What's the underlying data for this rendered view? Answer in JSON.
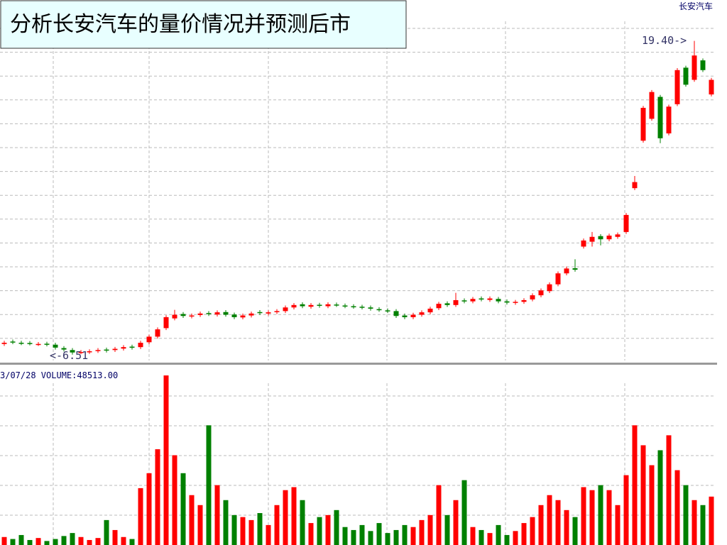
{
  "title": "分析长安汽车的量价情况并预测后市",
  "chart_data": {
    "type": "candlestick",
    "name": "长安汽车",
    "high_label": "19.40->",
    "low_label": "<-6.51",
    "volume_label": "3/07/28 VOLUME:48513.00",
    "up_color": "#ff0000",
    "down_color": "#008000",
    "grid": true,
    "ylim": [
      6.3,
      21.08
    ],
    "volume_ylim": [
      0,
      180000
    ],
    "open": [
      6.95,
      7.05,
      7.0,
      6.99,
      6.95,
      6.96,
      6.92,
      6.78,
      6.7,
      6.58,
      6.62,
      6.66,
      6.72,
      6.7,
      6.76,
      6.84,
      6.82,
      7.02,
      7.25,
      7.6,
      8.0,
      8.18,
      8.08,
      8.14,
      8.22,
      8.16,
      8.26,
      8.16,
      8.04,
      8.12,
      8.26,
      8.2,
      8.26,
      8.3,
      8.45,
      8.58,
      8.48,
      8.56,
      8.5,
      8.57,
      8.53,
      8.5,
      8.48,
      8.45,
      8.38,
      8.33,
      8.3,
      8.12,
      8.05,
      8.15,
      8.25,
      8.42,
      8.62,
      8.55,
      8.74,
      8.7,
      8.82,
      8.76,
      8.8,
      8.7,
      8.64,
      8.68,
      8.78,
      8.95,
      9.12,
      9.4,
      9.85,
      10.06,
      10.95,
      11.15,
      11.38,
      11.25,
      11.35,
      11.55,
      13.35,
      15.3,
      16.2,
      17.1,
      15.6,
      16.8,
      18.3,
      17.8,
      18.6,
      17.2
    ],
    "close": [
      7.0,
      7.02,
      6.98,
      6.97,
      6.95,
      6.93,
      6.8,
      6.72,
      6.6,
      6.62,
      6.65,
      6.7,
      6.68,
      6.75,
      6.82,
      6.8,
      7.0,
      7.25,
      7.55,
      8.05,
      8.15,
      8.1,
      8.12,
      8.2,
      8.18,
      8.25,
      8.15,
      8.05,
      8.12,
      8.2,
      8.22,
      8.25,
      8.3,
      8.45,
      8.55,
      8.5,
      8.55,
      8.52,
      8.58,
      8.55,
      8.5,
      8.48,
      8.45,
      8.4,
      8.35,
      8.3,
      8.1,
      8.05,
      8.15,
      8.25,
      8.4,
      8.6,
      8.55,
      8.75,
      8.7,
      8.8,
      8.78,
      8.82,
      8.7,
      8.65,
      8.68,
      8.75,
      8.95,
      9.15,
      9.4,
      9.85,
      10.05,
      10.0,
      11.2,
      11.35,
      11.25,
      11.4,
      11.45,
      12.25,
      13.6,
      16.65,
      17.3,
      15.4,
      16.7,
      18.2,
      17.6,
      18.8,
      18.2,
      17.8
    ],
    "high": [
      7.08,
      7.13,
      7.08,
      7.07,
      7.03,
      7.04,
      7.0,
      6.86,
      6.78,
      6.7,
      6.73,
      6.78,
      6.8,
      6.83,
      6.9,
      6.92,
      7.08,
      7.33,
      7.63,
      8.13,
      8.35,
      8.26,
      8.2,
      8.28,
      8.3,
      8.33,
      8.34,
      8.24,
      8.2,
      8.28,
      8.34,
      8.33,
      8.38,
      8.53,
      8.63,
      8.66,
      8.63,
      8.64,
      8.66,
      8.65,
      8.61,
      8.58,
      8.56,
      8.53,
      8.46,
      8.41,
      8.38,
      8.2,
      8.23,
      8.33,
      8.48,
      8.68,
      8.7,
      9.05,
      8.82,
      8.88,
      8.9,
      8.9,
      8.88,
      8.78,
      8.76,
      8.83,
      9.03,
      9.23,
      9.48,
      9.93,
      10.13,
      10.43,
      11.28,
      11.55,
      11.46,
      11.48,
      11.53,
      12.33,
      13.85,
      16.73,
      17.38,
      17.18,
      16.78,
      18.28,
      18.38,
      19.4,
      18.68,
      17.88
    ],
    "low": [
      6.87,
      6.94,
      6.9,
      6.89,
      6.87,
      6.85,
      6.72,
      6.64,
      6.51,
      6.53,
      6.54,
      6.58,
      6.6,
      6.62,
      6.68,
      6.72,
      6.74,
      6.94,
      7.17,
      7.52,
      7.92,
      8.02,
      8.0,
      8.06,
      8.1,
      8.08,
      8.07,
      7.97,
      7.96,
      8.04,
      8.14,
      8.12,
      8.18,
      8.22,
      8.37,
      8.42,
      8.4,
      8.44,
      8.42,
      8.47,
      8.42,
      8.4,
      8.37,
      8.32,
      8.27,
      8.22,
      8.02,
      7.97,
      7.97,
      8.07,
      8.17,
      8.34,
      8.47,
      8.47,
      8.62,
      8.62,
      8.7,
      8.68,
      8.62,
      8.57,
      8.56,
      8.6,
      8.7,
      8.87,
      9.04,
      9.32,
      9.77,
      9.92,
      10.87,
      10.95,
      11.0,
      11.17,
      11.27,
      11.47,
      13.27,
      15.22,
      16.12,
      15.2,
      15.52,
      16.72,
      17.52,
      17.72,
      18.12,
      17.12
    ],
    "volume": [
      8000,
      6000,
      10000,
      5000,
      7000,
      4000,
      6000,
      9000,
      12000,
      8000,
      5000,
      7000,
      25000,
      15000,
      8000,
      6000,
      57000,
      72000,
      96000,
      170000,
      90000,
      72000,
      50000,
      40000,
      120000,
      60000,
      45000,
      30000,
      28000,
      25000,
      32000,
      20000,
      40000,
      55000,
      58000,
      45000,
      22000,
      28000,
      30000,
      35000,
      18000,
      15000,
      20000,
      14000,
      22000,
      12000,
      15000,
      20000,
      18000,
      25000,
      30000,
      60000,
      30000,
      45000,
      65000,
      18000,
      15000,
      12000,
      20000,
      10000,
      14000,
      22000,
      28000,
      40000,
      50000,
      45000,
      35000,
      28000,
      58000,
      55000,
      60000,
      55000,
      40000,
      70000,
      120000,
      100000,
      80000,
      95000,
      110000,
      75000,
      60000,
      45000,
      40000,
      48513
    ]
  }
}
